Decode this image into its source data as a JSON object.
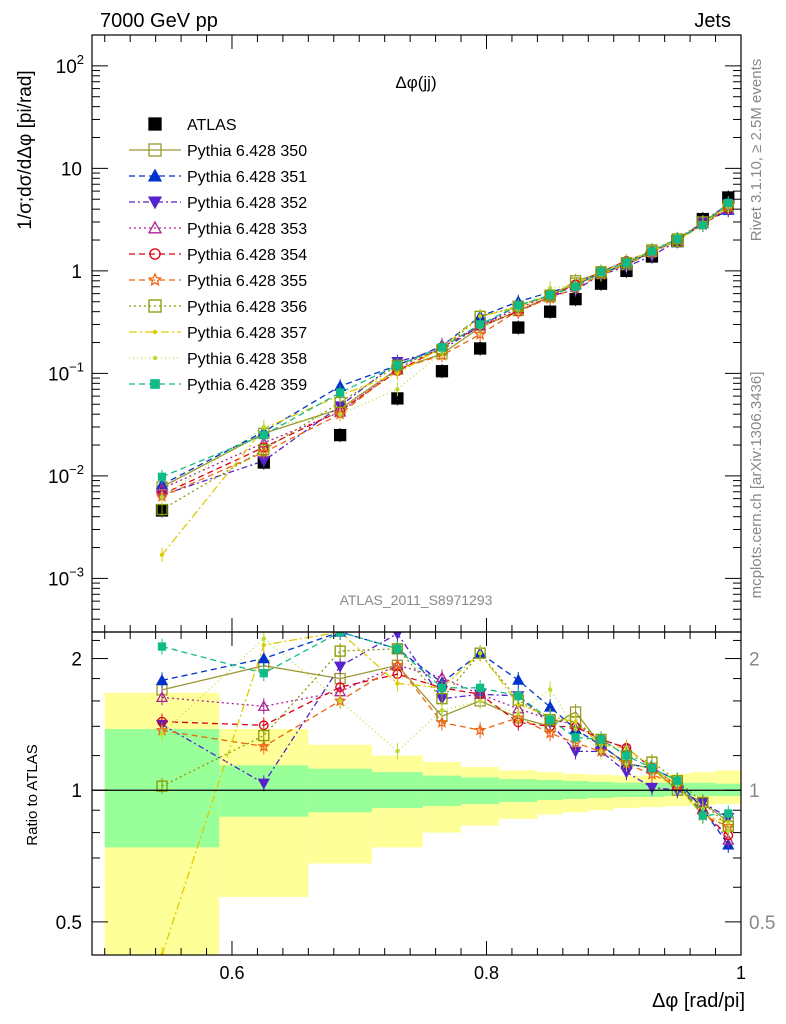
{
  "header": {
    "left": "7000 GeV pp",
    "right": "Jets"
  },
  "side_labels": {
    "rivet": "Rivet 3.1.10, ≥ 2.5M events",
    "mcplots": "mcplots.cern.ch [arXiv:1306.3436]"
  },
  "colors": {
    "band_outer": "#ffff99",
    "band_inner": "#99ff99"
  },
  "chart_data": {
    "type": "scatter",
    "title": "Δφ(jj)",
    "analysis": "ATLAS_2011_S8971293",
    "xlabel": "Δφ [rad/pi]",
    "ylabel": "1/σ;dσ/dΔφ [pi/rad]",
    "ratio_ylabel": "Ratio to ATLAS",
    "xlim": [
      0.49,
      1.0
    ],
    "ylim": [
      0.0003,
      200
    ],
    "yscale": "log",
    "ratio_ylim": [
      0.42,
      2.3
    ],
    "ratio_yscale": "log",
    "x_ticks": [
      "0.6",
      "0.8",
      "1"
    ],
    "y_ticks": [
      "10^-3",
      "10^-2",
      "10^-1",
      "1",
      "10",
      "10^2"
    ],
    "ratio_ticks": [
      "0.5",
      "1",
      "2"
    ],
    "legend_position": "top-left",
    "x": [
      0.545,
      0.625,
      0.685,
      0.73,
      0.765,
      0.795,
      0.825,
      0.85,
      0.87,
      0.89,
      0.91,
      0.93,
      0.95,
      0.97,
      0.99
    ],
    "bin_edges": [
      0.5,
      0.59,
      0.66,
      0.71,
      0.75,
      0.78,
      0.81,
      0.84,
      0.86,
      0.88,
      0.9,
      0.92,
      0.94,
      0.96,
      0.98,
      1.0
    ],
    "atlas_band_inner": [
      [
        0.74,
        1.38
      ],
      [
        0.87,
        1.14
      ],
      [
        0.89,
        1.12
      ],
      [
        0.91,
        1.1
      ],
      [
        0.92,
        1.08
      ],
      [
        0.93,
        1.07
      ],
      [
        0.94,
        1.06
      ],
      [
        0.95,
        1.055
      ],
      [
        0.955,
        1.05
      ],
      [
        0.96,
        1.045
      ],
      [
        0.965,
        1.04
      ],
      [
        0.965,
        1.04
      ],
      [
        0.97,
        1.04
      ],
      [
        0.97,
        1.04
      ],
      [
        0.97,
        1.035
      ]
    ],
    "atlas_band_outer": [
      [
        0.35,
        1.67
      ],
      [
        0.57,
        1.38
      ],
      [
        0.68,
        1.27
      ],
      [
        0.74,
        1.2
      ],
      [
        0.8,
        1.16
      ],
      [
        0.83,
        1.13
      ],
      [
        0.86,
        1.11
      ],
      [
        0.88,
        1.1
      ],
      [
        0.89,
        1.09
      ],
      [
        0.9,
        1.085
      ],
      [
        0.91,
        1.08
      ],
      [
        0.915,
        1.08
      ],
      [
        0.92,
        1.09
      ],
      [
        0.925,
        1.1
      ],
      [
        0.93,
        1.11
      ]
    ],
    "series": [
      {
        "name": "ATLAS",
        "color": "#000000",
        "marker": "square-filled",
        "dash": "none",
        "values": [
          0.0046,
          0.0135,
          0.025,
          0.057,
          0.105,
          0.175,
          0.28,
          0.4,
          0.53,
          0.75,
          1.0,
          1.38,
          1.95,
          3.2,
          5.2
        ]
      },
      {
        "name": "Pythia 6.428 350",
        "color": "#999933",
        "marker": "square-open",
        "dash": "solid",
        "values": [
          0.0078,
          0.026,
          0.045,
          0.11,
          0.155,
          0.28,
          0.41,
          0.56,
          0.8,
          0.95,
          1.15,
          1.55,
          1.95,
          3.0,
          4.4
        ]
      },
      {
        "name": "Pythia 6.428 351",
        "color": "#0033cc",
        "marker": "triangle-up-filled",
        "dash": "6,4",
        "values": [
          0.0082,
          0.027,
          0.075,
          0.12,
          0.185,
          0.36,
          0.5,
          0.62,
          0.73,
          0.95,
          1.15,
          1.55,
          2.05,
          2.9,
          3.9
        ]
      },
      {
        "name": "Pythia 6.428 352",
        "color": "#5522cc",
        "marker": "triangle-down-filled",
        "dash": "6,3,2,3",
        "values": [
          0.0065,
          0.014,
          0.048,
          0.13,
          0.17,
          0.29,
          0.46,
          0.57,
          0.65,
          0.92,
          1.1,
          1.4,
          1.95,
          3.0,
          4.5
        ]
      },
      {
        "name": "Pythia 6.428 353",
        "color": "#aa2299",
        "marker": "triangle-up-open",
        "dash": "2,3",
        "values": [
          0.0075,
          0.021,
          0.042,
          0.11,
          0.19,
          0.29,
          0.43,
          0.58,
          0.75,
          0.98,
          1.25,
          1.55,
          2.0,
          2.9,
          4.0
        ]
      },
      {
        "name": "Pythia 6.428 354",
        "color": "#dd0011",
        "marker": "circle-open",
        "dash": "6,4",
        "values": [
          0.0066,
          0.019,
          0.043,
          0.105,
          0.18,
          0.29,
          0.4,
          0.56,
          0.74,
          0.98,
          1.25,
          1.55,
          2.0,
          2.85,
          4.1
        ]
      },
      {
        "name": "Pythia 6.428 355",
        "color": "#ee6611",
        "marker": "star-open",
        "dash": "6,4",
        "values": [
          0.0063,
          0.017,
          0.04,
          0.11,
          0.15,
          0.24,
          0.41,
          0.54,
          0.68,
          0.92,
          1.15,
          1.5,
          2.0,
          2.8,
          4.3
        ]
      },
      {
        "name": "Pythia 6.428 356",
        "color": "#889900",
        "marker": "square-open",
        "dash": "2,3",
        "values": [
          0.0047,
          0.018,
          0.052,
          0.12,
          0.17,
          0.36,
          0.45,
          0.58,
          0.76,
          0.98,
          1.2,
          1.6,
          2.05,
          3.0,
          4.3
        ]
      },
      {
        "name": "Pythia 6.428 357",
        "color": "#ddcc00",
        "marker": "dot",
        "dash": "8,3,2,3",
        "values": [
          0.0017,
          0.029,
          0.061,
          0.1,
          0.18,
          0.36,
          0.44,
          0.59,
          0.76,
          0.95,
          1.25,
          1.55,
          2.0,
          2.8,
          4.4
        ]
      },
      {
        "name": "Pythia 6.428 358",
        "color": "#bbdd33",
        "marker": "dot",
        "dash": "1,3",
        "values": [
          0.0062,
          0.03,
          0.04,
          0.07,
          0.16,
          0.28,
          0.42,
          0.68,
          0.73,
          0.92,
          1.15,
          1.55,
          2.0,
          2.9,
          4.2
        ]
      },
      {
        "name": "Pythia 6.428 359",
        "color": "#11bb88",
        "marker": "square-filled-small",
        "dash": "6,4",
        "values": [
          0.0098,
          0.025,
          0.065,
          0.12,
          0.18,
          0.3,
          0.46,
          0.58,
          0.7,
          0.98,
          1.2,
          1.55,
          2.05,
          2.8,
          4.6
        ]
      }
    ]
  }
}
